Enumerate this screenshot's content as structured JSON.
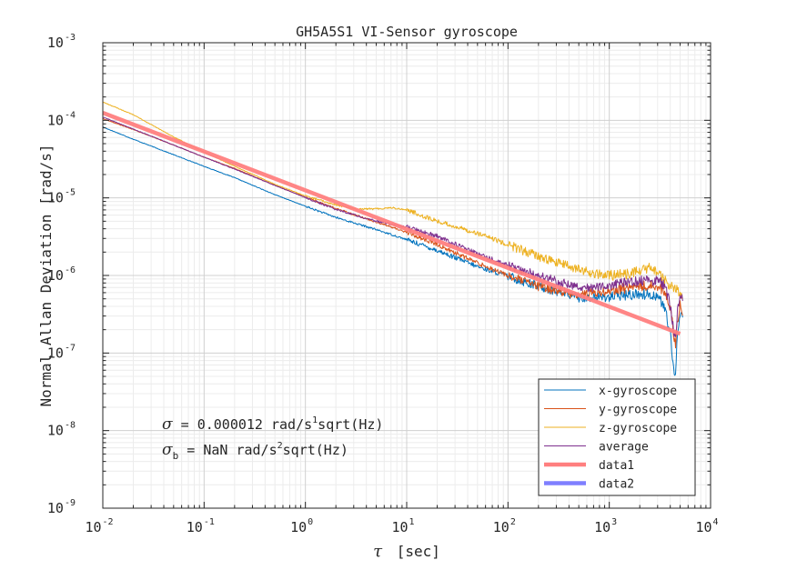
{
  "chart_data": {
    "type": "line",
    "title": "GH5A5S1 VI-Sensor gyroscope",
    "xlabel_symbol": "τ",
    "xlabel_unit": "[sec]",
    "ylabel": "Normal Allan Deviation [rad/s]",
    "xscale": "log",
    "yscale": "log",
    "xlim": [
      0.01,
      10000
    ],
    "ylim": [
      1e-09,
      0.001
    ],
    "grid": true,
    "minor_grid": true,
    "xticks": [
      {
        "base": "10",
        "exp": "-2"
      },
      {
        "base": "10",
        "exp": "-1"
      },
      {
        "base": "10",
        "exp": "0"
      },
      {
        "base": "10",
        "exp": "1"
      },
      {
        "base": "10",
        "exp": "2"
      },
      {
        "base": "10",
        "exp": "3"
      },
      {
        "base": "10",
        "exp": "4"
      }
    ],
    "yticks": [
      {
        "base": "10",
        "exp": "-9"
      },
      {
        "base": "10",
        "exp": "-8"
      },
      {
        "base": "10",
        "exp": "-7"
      },
      {
        "base": "10",
        "exp": "-6"
      },
      {
        "base": "10",
        "exp": "-5"
      },
      {
        "base": "10",
        "exp": "-4"
      },
      {
        "base": "10",
        "exp": "-3"
      }
    ],
    "legend_position": "bottom-right",
    "series": [
      {
        "name": "x-gyroscope",
        "color": "#0072BD",
        "linewidth": 1,
        "x": [
          0.01,
          0.02,
          0.05,
          0.1,
          0.2,
          0.5,
          1,
          2,
          5,
          10,
          20,
          50,
          100,
          200,
          500,
          700,
          1000,
          2000,
          3000,
          3500,
          4000,
          4300,
          4500,
          4700,
          5000,
          5300
        ],
        "y": [
          8.2e-05,
          5.7e-05,
          3.6e-05,
          2.55e-05,
          1.82e-05,
          1.1e-05,
          7.8e-06,
          5.6e-06,
          3.9e-06,
          2.9e-06,
          2.1e-06,
          1.3e-06,
          9.8e-07,
          7.2e-07,
          5.2e-07,
          5.2e-07,
          5.3e-07,
          5.8e-07,
          5.5e-07,
          3.9e-07,
          1.8e-07,
          6e-08,
          4.4e-08,
          1.9e-07,
          3.3e-07,
          3e-07
        ]
      },
      {
        "name": "y-gyroscope",
        "color": "#D95319",
        "linewidth": 1,
        "x": [
          0.01,
          0.02,
          0.05,
          0.1,
          0.2,
          0.5,
          1,
          2,
          5,
          10,
          20,
          50,
          100,
          200,
          500,
          700,
          1000,
          2000,
          3000,
          3500,
          4000,
          4300,
          4500,
          4700,
          5000,
          5300
        ],
        "y": [
          0.000105,
          7.6e-05,
          4.8e-05,
          3.35e-05,
          2.4e-05,
          1.45e-05,
          1.02e-05,
          7.3e-06,
          4.9e-06,
          3.6e-06,
          2.5e-06,
          1.45e-06,
          1e-06,
          7.2e-07,
          5.6e-07,
          6e-07,
          6.4e-07,
          7.3e-07,
          7.5e-07,
          6e-07,
          4e-07,
          1.9e-07,
          1.3e-07,
          2.6e-07,
          4.1e-07,
          3.5e-07
        ]
      },
      {
        "name": "z-gyroscope",
        "color": "#EDB120",
        "linewidth": 1,
        "x": [
          0.01,
          0.02,
          0.05,
          0.1,
          0.2,
          0.5,
          1,
          2,
          3,
          5,
          7,
          10,
          20,
          50,
          100,
          200,
          500,
          700,
          1000,
          1500,
          2000,
          2500,
          3000,
          3500,
          4000,
          4500,
          5000,
          5300
        ],
        "y": [
          0.000172,
          0.000118,
          6.1e-05,
          3.9e-05,
          2.55e-05,
          1.5e-05,
          1.06e-05,
          8.1e-06,
          7.3e-06,
          7.2e-06,
          7.5e-06,
          7e-06,
          5e-06,
          3.5e-06,
          2.5e-06,
          1.75e-06,
          1.2e-06,
          1.05e-06,
          1e-06,
          1.05e-06,
          1.15e-06,
          1.25e-06,
          1.1e-06,
          8.5e-07,
          7.5e-07,
          6.8e-07,
          5.6e-07,
          4.8e-07
        ]
      },
      {
        "name": "average",
        "color": "#7E2F8E",
        "linewidth": 1,
        "x": [
          0.01,
          0.02,
          0.05,
          0.1,
          0.2,
          0.5,
          1,
          2,
          5,
          10,
          20,
          50,
          100,
          200,
          500,
          700,
          1000,
          2000,
          3000,
          3500,
          4000,
          4300,
          4500,
          4700,
          5000,
          5300
        ],
        "y": [
          0.00011,
          7.7e-05,
          4.8e-05,
          3.35e-05,
          2.35e-05,
          1.45e-05,
          1.01e-05,
          7.1e-06,
          5e-06,
          4.2e-06,
          3.2e-06,
          1.9e-06,
          1.35e-06,
          9.8e-07,
          7.2e-07,
          7e-07,
          7.5e-07,
          8.5e-07,
          8.7e-07,
          7.5e-07,
          4.2e-07,
          2e-07,
          1.6e-07,
          3.3e-07,
          5.5e-07,
          4.8e-07
        ]
      },
      {
        "name": "data1",
        "color": "#FF7F7F",
        "linewidth": 4.5,
        "x": [
          0.01,
          5000
        ],
        "y": [
          0.000125,
          1.77e-07
        ]
      },
      {
        "name": "data2",
        "color": "#7F7FFF",
        "linewidth": 4.5,
        "x": [],
        "y": []
      }
    ],
    "annotations": [
      {
        "sym": "σ",
        "sub": "",
        "text1": " = 0.000012 rad/s",
        "sup": "1",
        "text2": "sqrt(Hz)"
      },
      {
        "sym": "σ",
        "sub": "b",
        "text1": " = NaN rad/s",
        "sup": "2",
        "text2": "sqrt(Hz)"
      }
    ]
  }
}
